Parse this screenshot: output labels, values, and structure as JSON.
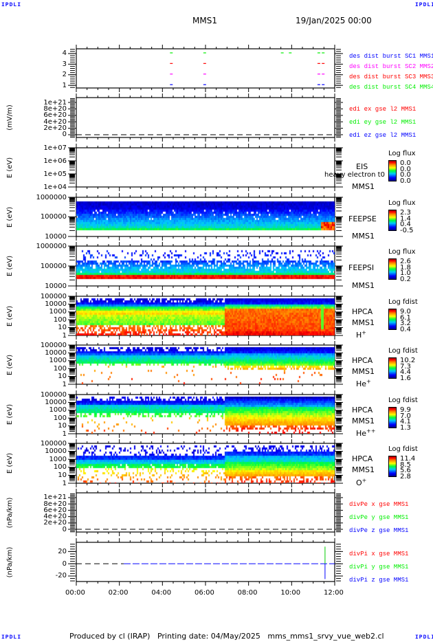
{
  "header": {
    "title": "MMS1",
    "datetime": "19/Jan/2025 00:00",
    "corner_label": "IPDLI"
  },
  "footer": {
    "text": "Produced by cl (IRAP)   Printing date: 04/May/2025   mms_mms1_srvy_vue_web2.cl"
  },
  "chart_data": {
    "type": "heatmap",
    "title": "MMS1 19/Jan/2025 00:00",
    "x_range_hours": [
      0,
      12
    ],
    "x_ticks": [
      "00:00",
      "02:00",
      "04:00",
      "06:00",
      "08:00",
      "10:00",
      "12:00"
    ],
    "panels": [
      {
        "id": "burst",
        "type": "line",
        "ylabel": "",
        "scale": "linear",
        "yrange": [
          0.75,
          4.45
        ],
        "yticks": [
          {
            "v": 4,
            "label": "4"
          },
          {
            "v": 3,
            "label": "3"
          },
          {
            "v": 2,
            "label": "2"
          },
          {
            "v": 1,
            "label": "1"
          }
        ],
        "legend": [
          {
            "text": "des dist burst SC1 MMS1",
            "color": "#0000ff"
          },
          {
            "text": "des dist burst SC2 MMS2",
            "color": "#ff00ff"
          },
          {
            "text": "des dist burst SC3 MMS3",
            "color": "#ff0000"
          },
          {
            "text": "des dist burst SC4 MMS4",
            "color": "#00ee00"
          }
        ],
        "burst_marks": [
          {
            "level": 4,
            "color": "#00ee00",
            "hours": [
              4.35,
              5.9,
              9.5,
              9.87,
              11.2,
              11.4
            ]
          },
          {
            "level": 3,
            "color": "#ff0000",
            "hours": [
              4.35,
              5.9,
              11.2,
              11.4
            ]
          },
          {
            "level": 2,
            "color": "#ff00ff",
            "hours": [
              4.35,
              5.9,
              11.2,
              11.4
            ]
          },
          {
            "level": 1,
            "color": "#0000ff",
            "hours": [
              4.35,
              5.9,
              11.2,
              11.4
            ]
          }
        ]
      },
      {
        "id": "edi",
        "type": "line",
        "ylabel": "(mV/m)",
        "scale": "linear",
        "yrange": [
          -8.6e+19,
          1.15e+21
        ],
        "yticks": [
          {
            "v": 1e+21,
            "label": "1e+21"
          },
          {
            "v": 8e+20,
            "label": "8e+20"
          },
          {
            "v": 6e+20,
            "label": "6e+20"
          },
          {
            "v": 4e+20,
            "label": "4e+20"
          },
          {
            "v": 2e+20,
            "label": "2e+20"
          },
          {
            "v": 0,
            "label": "0"
          }
        ],
        "zero_line": true,
        "legend": [
          {
            "text": "edi ex gse l2 MMS1",
            "color": "#ff0000"
          },
          {
            "text": "edi ey gse l2 MMS1",
            "color": "#00ee00"
          },
          {
            "text": "edi ez gse l2 MMS1",
            "color": "#0000ff"
          }
        ]
      },
      {
        "id": "eis",
        "type": "heatmap",
        "ylabel": "E (eV)",
        "scale": "log",
        "yrange": [
          10000.0,
          10000000.0
        ],
        "yticks": [
          {
            "v": 10000000.0,
            "label": "1e+07"
          },
          {
            "v": 1000000.0,
            "label": "1e+06"
          },
          {
            "v": 100000.0,
            "label": "1e+05"
          },
          {
            "v": 10000.0,
            "label": "1e+04"
          }
        ],
        "instrument": [
          "EIS",
          "MMS1"
        ],
        "overlay_text": "heavy electron t0",
        "colorbar": {
          "title": "Log flux",
          "ticks": [
            "0.0",
            "0.0",
            "0.0",
            "0.0"
          ]
        }
      },
      {
        "id": "feepse",
        "type": "heatmap",
        "ylabel": "E (eV)",
        "scale": "log",
        "yrange": [
          10000.0,
          1000000.0
        ],
        "yticks": [
          {
            "v": 1000000.0,
            "label": "1000000"
          },
          {
            "v": 100000.0,
            "label": "100000"
          },
          {
            "v": 10000.0,
            "label": "10000"
          }
        ],
        "instrument": [
          "FEEPSE",
          "MMS1"
        ],
        "colorbar": {
          "title": "Log flux",
          "ticks": [
            "2.3",
            "1.4",
            "0.4",
            "-0.5"
          ]
        }
      },
      {
        "id": "feepsi",
        "type": "heatmap",
        "ylabel": "E (eV)",
        "scale": "log",
        "yrange": [
          10000.0,
          1000000.0
        ],
        "yticks": [
          {
            "v": 1000000.0,
            "label": "1000000"
          },
          {
            "v": 100000.0,
            "label": "100000"
          },
          {
            "v": 10000.0,
            "label": "10000"
          }
        ],
        "instrument": [
          "FEEPSI",
          "MMS1"
        ],
        "colorbar": {
          "title": "Log flux",
          "ticks": [
            "2.6",
            "1.8",
            "1.0",
            "0.2"
          ]
        }
      },
      {
        "id": "hpca_h",
        "type": "heatmap",
        "ylabel": "E (eV)",
        "scale": "log",
        "yrange": [
          1,
          100000.0
        ],
        "yticks": [
          {
            "v": 100000.0,
            "label": "100000"
          },
          {
            "v": 10000.0,
            "label": "10000"
          },
          {
            "v": 1000.0,
            "label": "1000"
          },
          {
            "v": 100,
            "label": "100"
          },
          {
            "v": 10,
            "label": "10"
          },
          {
            "v": 1,
            "label": "1"
          }
        ],
        "instrument": [
          "HPCA",
          "MMS1"
        ],
        "species": {
          "base": "H",
          "sup": "+"
        },
        "colorbar": {
          "title": "Log fdist",
          "ticks": [
            "9.0",
            "6.1",
            "3.2",
            "0.4"
          ]
        }
      },
      {
        "id": "hpca_he1",
        "type": "heatmap",
        "ylabel": "E (eV)",
        "scale": "log",
        "yrange": [
          1,
          100000.0
        ],
        "yticks": [
          {
            "v": 100000.0,
            "label": "100000"
          },
          {
            "v": 10000.0,
            "label": "10000"
          },
          {
            "v": 1000.0,
            "label": "1000"
          },
          {
            "v": 100,
            "label": "100"
          },
          {
            "v": 10,
            "label": "10"
          },
          {
            "v": 1,
            "label": "1"
          }
        ],
        "instrument": [
          "HPCA",
          "MMS1"
        ],
        "species": {
          "base": "He",
          "sup": "+"
        },
        "colorbar": {
          "title": "Log fdist",
          "ticks": [
            "10.2",
            "7.3",
            "4.4",
            "1.6"
          ]
        }
      },
      {
        "id": "hpca_he2",
        "type": "heatmap",
        "ylabel": "E (eV)",
        "scale": "log",
        "yrange": [
          1,
          100000.0
        ],
        "yticks": [
          {
            "v": 100000.0,
            "label": "100000"
          },
          {
            "v": 10000.0,
            "label": "10000"
          },
          {
            "v": 1000.0,
            "label": "1000"
          },
          {
            "v": 100,
            "label": "100"
          },
          {
            "v": 10,
            "label": "10"
          },
          {
            "v": 1,
            "label": "1"
          }
        ],
        "instrument": [
          "HPCA",
          "MMS1"
        ],
        "species": {
          "base": "He",
          "sup": "++"
        },
        "colorbar": {
          "title": "Log fdist",
          "ticks": [
            "9.9",
            "7.0",
            "4.1",
            "1.3"
          ]
        }
      },
      {
        "id": "hpca_o",
        "type": "heatmap",
        "ylabel": "E (eV)",
        "scale": "log",
        "yrange": [
          1,
          100000.0
        ],
        "yticks": [
          {
            "v": 100000.0,
            "label": "100000"
          },
          {
            "v": 10000.0,
            "label": "10000"
          },
          {
            "v": 1000.0,
            "label": "1000"
          },
          {
            "v": 100,
            "label": "100"
          },
          {
            "v": 10,
            "label": "10"
          },
          {
            "v": 1,
            "label": "1"
          }
        ],
        "instrument": [
          "HPCA",
          "MMS1"
        ],
        "species": {
          "base": "O",
          "sup": "+"
        },
        "colorbar": {
          "title": "Log fdist",
          "ticks": [
            "11.4",
            "8.5",
            "5.6",
            "2.8"
          ]
        }
      },
      {
        "id": "divpe",
        "type": "line",
        "ylabel": "(nPa/km)",
        "scale": "linear",
        "yrange": [
          -8.6e+19,
          1.15e+21
        ],
        "yticks": [
          {
            "v": 1e+21,
            "label": "1e+21"
          },
          {
            "v": 8e+20,
            "label": "8e+20"
          },
          {
            "v": 6e+20,
            "label": "6e+20"
          },
          {
            "v": 4e+20,
            "label": "4e+20"
          },
          {
            "v": 2e+20,
            "label": "2e+20"
          },
          {
            "v": 0,
            "label": "0"
          }
        ],
        "zero_line": true,
        "legend": [
          {
            "text": "divPe x gse MMS1",
            "color": "#ff0000"
          },
          {
            "text": "divPe y gse MMS1",
            "color": "#00ee00"
          },
          {
            "text": "divPe z gse MMS1",
            "color": "#0000ff"
          }
        ]
      },
      {
        "id": "divpi",
        "type": "line",
        "ylabel": "(nPa/km)",
        "scale": "linear",
        "yrange": [
          -29,
          35
        ],
        "yticks": [
          {
            "v": 20,
            "label": "20"
          },
          {
            "v": 0,
            "label": "0"
          },
          {
            "v": -20,
            "label": "-20"
          }
        ],
        "zero_line": true,
        "series_start_hour": 2.2,
        "spike": {
          "hour": 11.55,
          "y_max": 28,
          "y_min": -25
        },
        "legend": [
          {
            "text": "divPi x gse MMS1",
            "color": "#ff0000"
          },
          {
            "text": "divPi y gse MMS1",
            "color": "#00ee00"
          },
          {
            "text": "divPi z gse MMS1",
            "color": "#0000ff"
          }
        ]
      }
    ]
  }
}
